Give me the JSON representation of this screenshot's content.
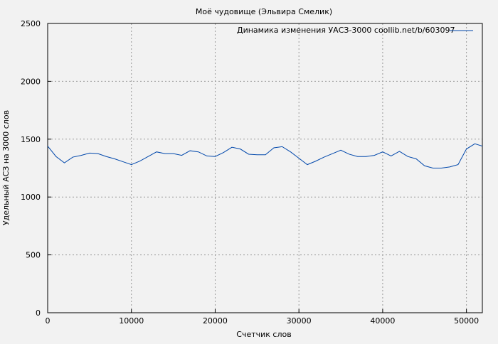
{
  "chart_data": {
    "type": "line",
    "title": "Моё чудовище (Эльвира Смелик)",
    "xlabel": "Счетчик слов",
    "ylabel": "Удельный АСЗ на 3000 слов",
    "xlim": [
      0,
      51900
    ],
    "ylim": [
      0,
      2500
    ],
    "xticks": [
      0,
      10000,
      20000,
      30000,
      40000,
      50000
    ],
    "yticks": [
      0,
      500,
      1000,
      1500,
      2000,
      2500
    ],
    "grid": true,
    "legend_position": "top-right",
    "series": [
      {
        "name": "Динамика изменения УАСЗ-3000 coollib.net/b/603097",
        "color": "#0047ab",
        "x": [
          0,
          1000,
          2000,
          3000,
          4000,
          5000,
          6000,
          7000,
          8000,
          9000,
          10000,
          11000,
          12000,
          13000,
          14000,
          15000,
          16000,
          17000,
          18000,
          19000,
          20000,
          21000,
          22000,
          23000,
          24000,
          25000,
          26000,
          27000,
          28000,
          29000,
          30000,
          31000,
          32000,
          33000,
          34000,
          35000,
          36000,
          37000,
          38000,
          39000,
          40000,
          41000,
          42000,
          43000,
          44000,
          45000,
          46000,
          47000,
          48000,
          49000,
          50000,
          51000,
          51900
        ],
        "y": [
          1440,
          1350,
          1295,
          1345,
          1360,
          1380,
          1375,
          1350,
          1330,
          1305,
          1280,
          1310,
          1350,
          1390,
          1375,
          1375,
          1360,
          1400,
          1390,
          1355,
          1350,
          1385,
          1430,
          1415,
          1370,
          1365,
          1365,
          1425,
          1435,
          1390,
          1335,
          1280,
          1310,
          1345,
          1375,
          1405,
          1370,
          1350,
          1350,
          1360,
          1390,
          1355,
          1395,
          1350,
          1330,
          1270,
          1250,
          1250,
          1260,
          1280,
          1415,
          1460,
          1440
        ]
      }
    ]
  }
}
